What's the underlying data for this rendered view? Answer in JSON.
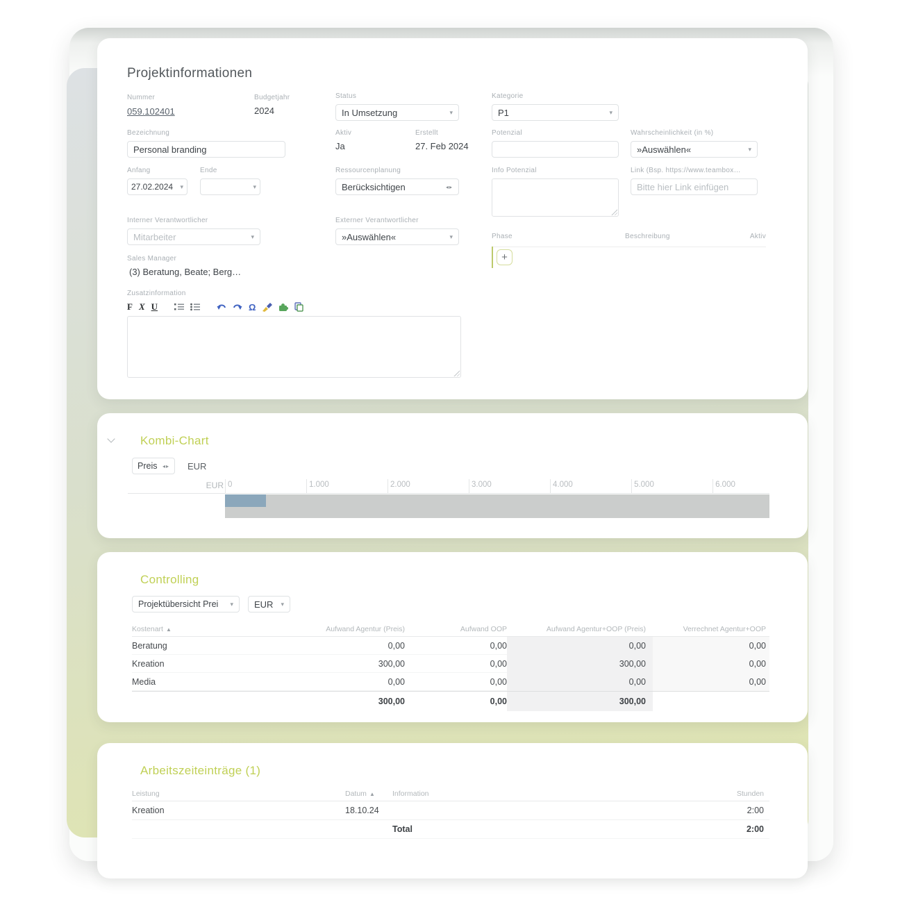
{
  "icons": {
    "dropdown_caret": "▾",
    "horizontal_spinner": "◂▸",
    "sort_asc": "▲",
    "add": "+"
  },
  "project_info": {
    "title": "Projektinformationen",
    "nummer_label": "Nummer",
    "nummer_value": "059.102401",
    "budgetjahr_label": "Budgetjahr",
    "budgetjahr_value": "2024",
    "status_label": "Status",
    "status_value": "In Umsetzung",
    "kategorie_label": "Kategorie",
    "kategorie_value": "P1",
    "bezeichnung_label": "Bezeichnung",
    "bezeichnung_value": "Personal branding",
    "aktiv_label": "Aktiv",
    "aktiv_value": "Ja",
    "erstellt_label": "Erstellt",
    "erstellt_value": "27. Feb 2024",
    "potenzial_label": "Potenzial",
    "potenzial_value": "",
    "wahrscheinlichkeit_label": "Wahrscheinlichkeit (in %)",
    "wahrscheinlichkeit_value": "»Auswählen«",
    "anfang_label": "Anfang",
    "anfang_value": "27.02.2024",
    "ende_label": "Ende",
    "ende_value": "",
    "ressourcenplanung_label": "Ressourcenplanung",
    "ressourcenplanung_value": "Berücksichtigen",
    "info_potenzial_label": "Info Potenzial",
    "info_potenzial_value": "",
    "link_label": "Link (Bsp. https://www.teambox…",
    "link_placeholder": "Bitte hier Link einfügen",
    "interner_label": "Interner Verantwortlicher",
    "interner_value": "Mitarbeiter",
    "externer_label": "Externer Verantwortlicher",
    "externer_value": "»Auswählen«",
    "sales_manager_label": "Sales Manager",
    "sales_manager_value": "(3) Beratung, Beate; Berg…",
    "zusatzinformation_label": "Zusatzinformation",
    "editor": {
      "bold": "F",
      "italic": "X",
      "underline": "U",
      "omega": "Ω"
    },
    "phase": {
      "col_phase": "Phase",
      "col_beschreibung": "Beschreibung",
      "col_aktiv": "Aktiv",
      "add_label": "+"
    }
  },
  "kombi_chart": {
    "title": "Kombi-Chart",
    "metric_selector_value": "Preis",
    "currency_label": "EUR",
    "chart_data": {
      "type": "bar",
      "orientation": "horizontal",
      "categories": [
        ""
      ],
      "series": [
        {
          "name": "Preis",
          "values": [
            500
          ],
          "color": "#8ba7bb"
        }
      ],
      "background_track": {
        "max": 6700,
        "color": "#cbcdcc"
      },
      "xlabel": "EUR",
      "xlim": [
        0,
        6700
      ],
      "xticks": [
        {
          "label": "0",
          "value": 0
        },
        {
          "label": "1.000",
          "value": 1000
        },
        {
          "label": "2.000",
          "value": 2000
        },
        {
          "label": "3.000",
          "value": 3000
        },
        {
          "label": "4.000",
          "value": 4000
        },
        {
          "label": "5.000",
          "value": 5000
        },
        {
          "label": "6.000",
          "value": 6000
        }
      ],
      "grid": false,
      "legend": false
    }
  },
  "controlling": {
    "title": "Controlling",
    "view_selector_value": "Projektübersicht Prei",
    "currency_selector_value": "EUR",
    "columns": [
      "Kostenart",
      "Aufwand Agentur (Preis)",
      "Aufwand OOP",
      "Aufwand Agentur+OOP (Preis)",
      "Verrechnet Agentur+OOP"
    ],
    "rows": [
      {
        "name": "Beratung",
        "c1": "0,00",
        "c2": "0,00",
        "c3": "0,00",
        "c4": "0,00"
      },
      {
        "name": "Kreation",
        "c1": "300,00",
        "c2": "0,00",
        "c3": "300,00",
        "c4": "0,00"
      },
      {
        "name": "Media",
        "c1": "0,00",
        "c2": "0,00",
        "c3": "0,00",
        "c4": "0,00"
      }
    ],
    "total": {
      "c1": "300,00",
      "c2": "0,00",
      "c3": "300,00",
      "c4": ""
    }
  },
  "arbeitszeit": {
    "title": "Arbeitszeiteinträge (1)",
    "columns": [
      "Leistung",
      "Datum",
      "Information",
      "Stunden"
    ],
    "rows": [
      {
        "leistung": "Kreation",
        "datum": "18.10.24",
        "information": "",
        "stunden": "2:00"
      }
    ],
    "total_label": "Total",
    "total_value": "2:00"
  }
}
